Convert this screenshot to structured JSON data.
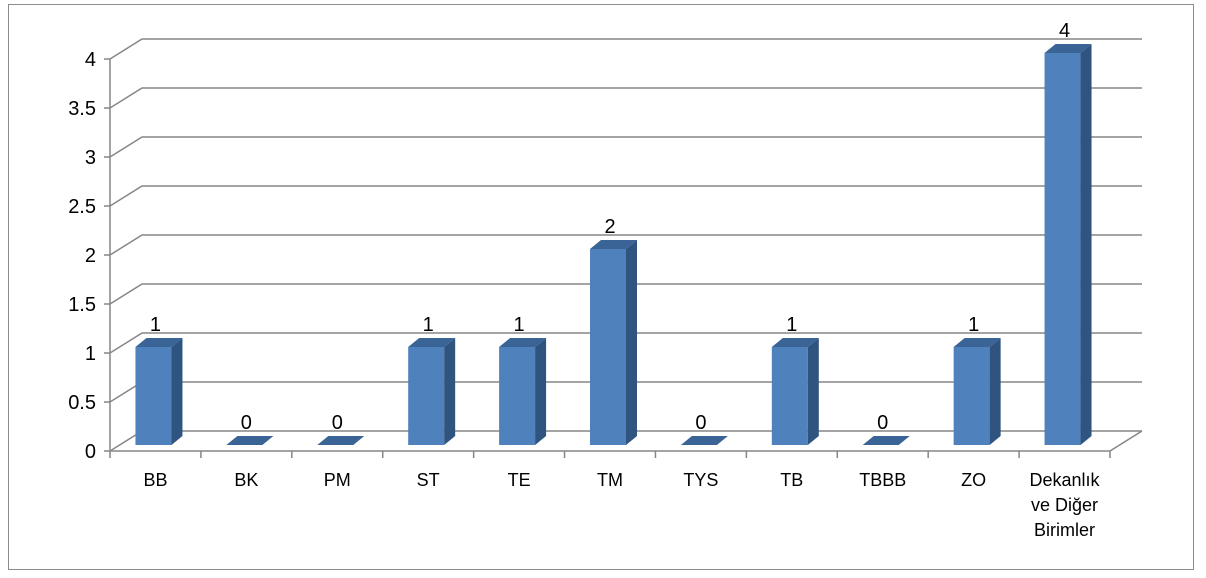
{
  "chart_data": {
    "type": "bar",
    "style": "3d-column",
    "title": "",
    "xlabel": "",
    "ylabel": "",
    "categories": [
      [
        "BB"
      ],
      [
        "BK"
      ],
      [
        "PM"
      ],
      [
        "ST"
      ],
      [
        "TE"
      ],
      [
        "TM"
      ],
      [
        "TYS"
      ],
      [
        "TB"
      ],
      [
        "TBBB"
      ],
      [
        "ZO"
      ],
      [
        "Dekanlık",
        "ve Diğer",
        "Birimler"
      ]
    ],
    "values": [
      1,
      0,
      0,
      1,
      1,
      2,
      0,
      1,
      0,
      1,
      4
    ],
    "data_labels": [
      "1",
      "0",
      "0",
      "1",
      "1",
      "2",
      "0",
      "1",
      "0",
      "1",
      "4"
    ],
    "yticks": [
      "0",
      "0.5",
      "1",
      "1.5",
      "2",
      "2.5",
      "3",
      "3.5",
      "4"
    ],
    "ylim": [
      0,
      4
    ],
    "grid": true,
    "legend": "none",
    "colors": {
      "bar_front": "#4F81BD",
      "bar_side": "#2F5480",
      "bar_top": "#3A6396",
      "grid": "#868686",
      "axis": "#868686"
    }
  }
}
